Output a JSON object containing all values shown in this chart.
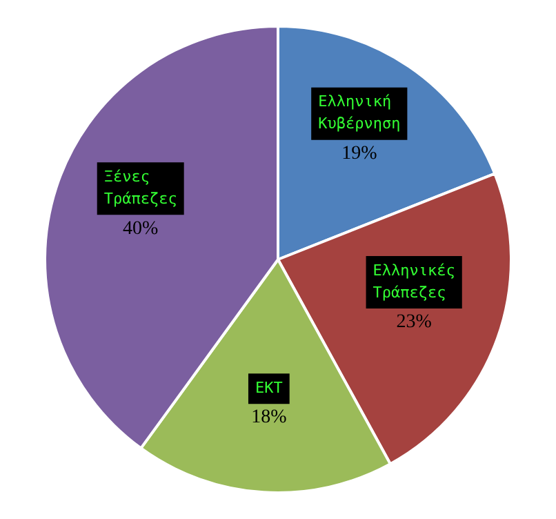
{
  "chart_data": {
    "type": "pie",
    "categories": [
      "Ελληνική Κυβέρνηση",
      "Ελληνικές Τράπεζες",
      "ΕΚΤ",
      "Ξένες Τράπεζες"
    ],
    "values": [
      19,
      23,
      18,
      40
    ],
    "value_labels": [
      "19%",
      "23%",
      "18%",
      "40%"
    ],
    "colors": [
      "#4f81bd",
      "#a5423f",
      "#9bbb59",
      "#7b5fa0"
    ],
    "legend": false
  }
}
